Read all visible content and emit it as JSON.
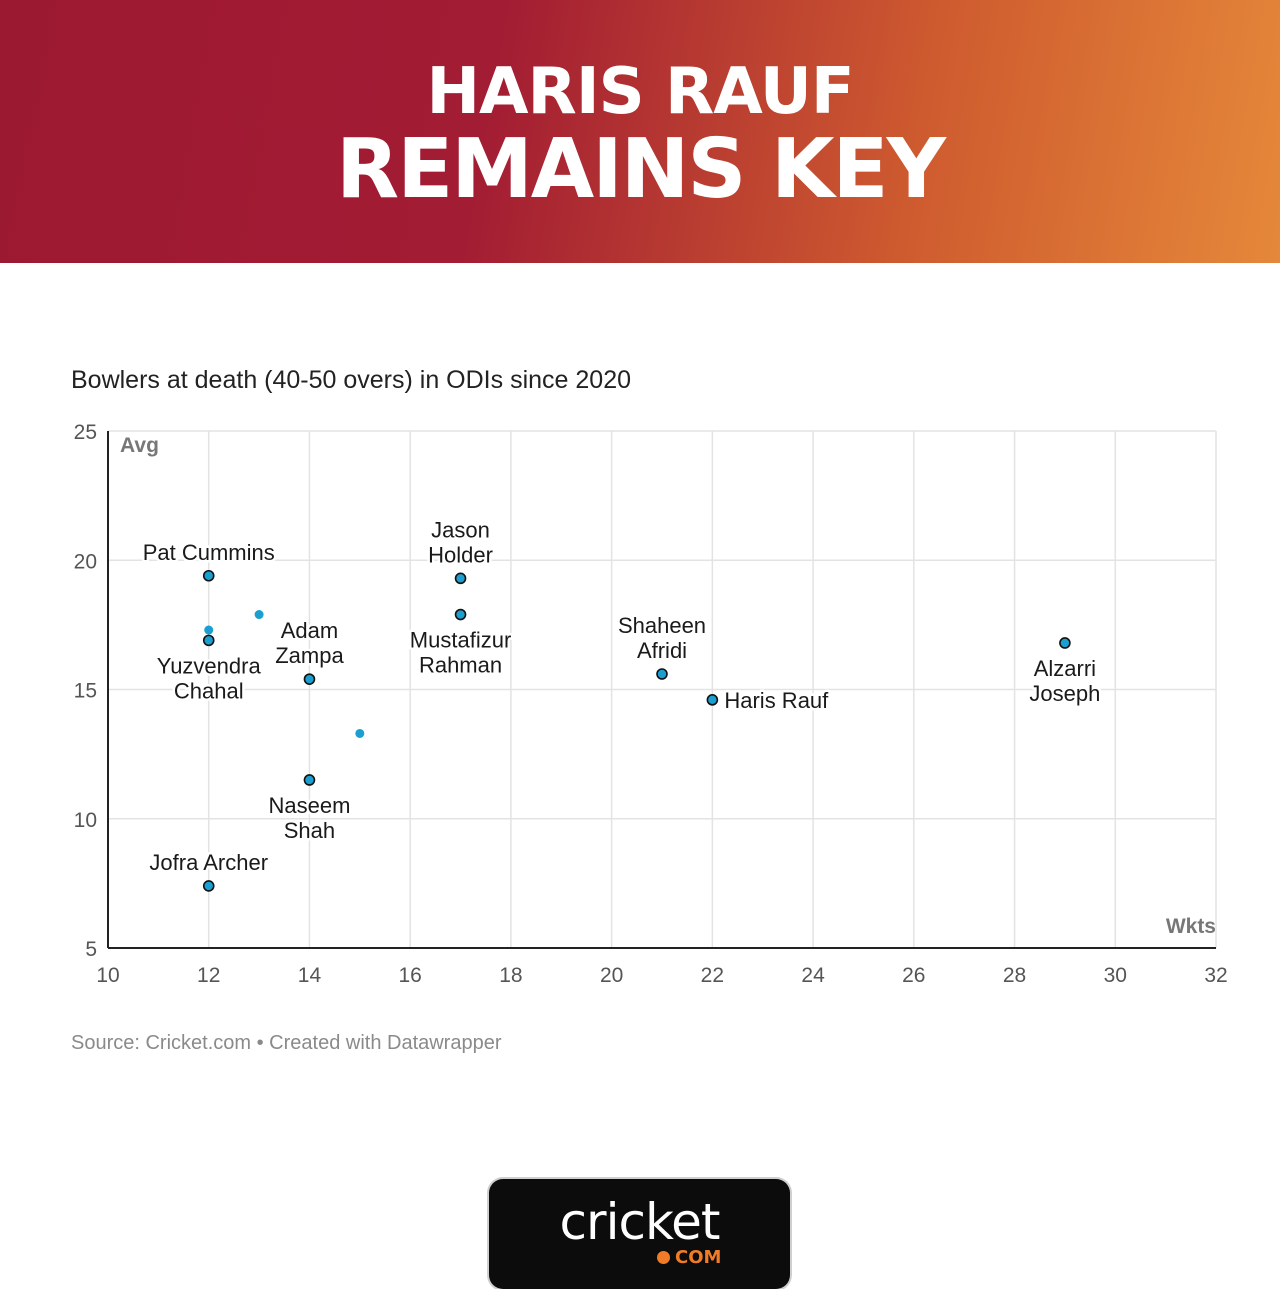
{
  "header": {
    "line1": "HARIS RAUF",
    "line2": "REMAINS KEY"
  },
  "chart_data": {
    "type": "scatter",
    "title": "Bowlers at death (40-50 overs) in ODIs since 2020",
    "xlabel": "Wkts",
    "ylabel": "Avg",
    "xlim": [
      10,
      32
    ],
    "ylim": [
      5,
      25
    ],
    "x_ticks": [
      10,
      12,
      14,
      16,
      18,
      20,
      22,
      24,
      26,
      28,
      30,
      32
    ],
    "y_ticks": [
      5,
      10,
      15,
      20,
      25
    ],
    "grid": true,
    "points": [
      {
        "label": [
          "Pat Cummins"
        ],
        "x": 12,
        "y": 19.4,
        "label_pos": "above"
      },
      {
        "label": [
          "Yuzvendra",
          "Chahal"
        ],
        "x": 12,
        "y": 16.9,
        "label_pos": "below"
      },
      {
        "label": [
          "Adam",
          "Zampa"
        ],
        "x": 14,
        "y": 15.4,
        "label_pos": "above"
      },
      {
        "label": [
          "Naseem",
          "Shah"
        ],
        "x": 14,
        "y": 11.5,
        "label_pos": "below"
      },
      {
        "label": [
          "Jofra Archer"
        ],
        "x": 12,
        "y": 7.4,
        "label_pos": "above"
      },
      {
        "label": [
          "Jason",
          "Holder"
        ],
        "x": 17,
        "y": 19.3,
        "label_pos": "above"
      },
      {
        "label": [
          "Mustafizur",
          "Rahman"
        ],
        "x": 17,
        "y": 17.9,
        "label_pos": "below"
      },
      {
        "label": [
          "Shaheen",
          "Afridi"
        ],
        "x": 21,
        "y": 15.6,
        "label_pos": "above"
      },
      {
        "label": [
          "Haris Rauf"
        ],
        "x": 22,
        "y": 14.6,
        "label_pos": "right"
      },
      {
        "label": [
          "Alzarri",
          "Joseph"
        ],
        "x": 29,
        "y": 16.8,
        "label_pos": "below"
      },
      {
        "label": [],
        "x": 12,
        "y": 17.3
      },
      {
        "label": [],
        "x": 13,
        "y": 17.9
      },
      {
        "label": [],
        "x": 15,
        "y": 13.3
      }
    ],
    "colors": {
      "point_fill": "#1b9fd1",
      "point_stroke": "#111111",
      "grid": "#e3e3e3",
      "axis": "#222222"
    }
  },
  "footer": {
    "source": "Source: Cricket.com • Created with Datawrapper"
  },
  "logo": {
    "word": "cricket",
    "sub": "COM"
  }
}
